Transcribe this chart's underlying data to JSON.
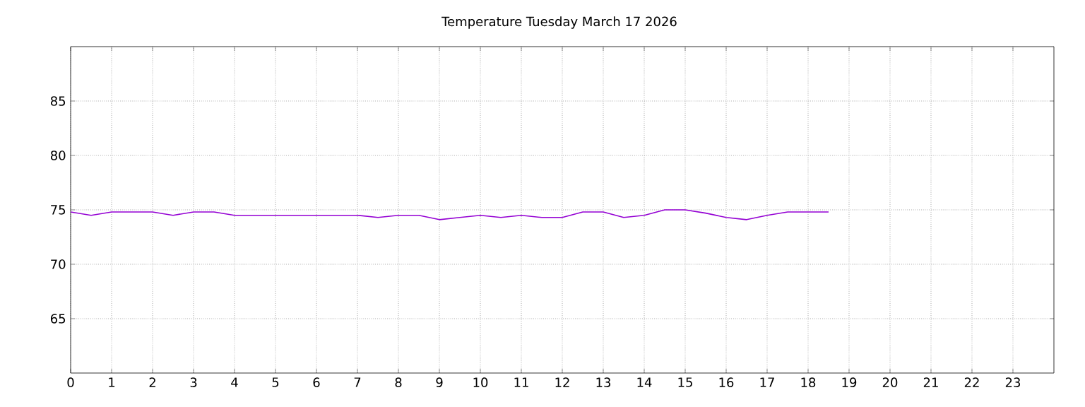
{
  "chart_data": {
    "type": "line",
    "title": "Temperature Tuesday March 17 2026",
    "x": [
      0,
      0.5,
      1,
      1.5,
      2,
      2.5,
      3,
      3.5,
      4,
      4.5,
      5,
      5.5,
      6,
      6.5,
      7,
      7.5,
      8,
      8.5,
      9,
      9.5,
      10,
      10.5,
      11,
      11.5,
      12,
      12.5,
      13,
      13.5,
      14,
      14.5,
      15,
      15.5,
      16,
      16.5,
      17,
      17.5,
      18,
      18.5
    ],
    "series": [
      {
        "color": "#9400d3",
        "values": [
          74.8,
          74.5,
          74.8,
          74.8,
          74.8,
          74.5,
          74.8,
          74.8,
          74.5,
          74.5,
          74.5,
          74.5,
          74.5,
          74.5,
          74.5,
          74.3,
          74.5,
          74.5,
          74.1,
          74.3,
          74.5,
          74.3,
          74.5,
          74.3,
          74.3,
          74.8,
          74.8,
          74.3,
          74.5,
          75,
          75,
          74.7,
          74.3,
          74.1,
          74.5,
          74.8,
          74.8,
          74.8
        ]
      }
    ],
    "xlim": [
      0,
      24
    ],
    "ylim": [
      60,
      90
    ],
    "xticks": [
      0,
      1,
      2,
      3,
      4,
      5,
      6,
      7,
      8,
      9,
      10,
      11,
      12,
      13,
      14,
      15,
      16,
      17,
      18,
      19,
      20,
      21,
      22,
      23
    ],
    "yticks": [
      65,
      70,
      75,
      80,
      85
    ],
    "grid": true,
    "legend": false,
    "line_style": "solid",
    "marker": "none"
  }
}
